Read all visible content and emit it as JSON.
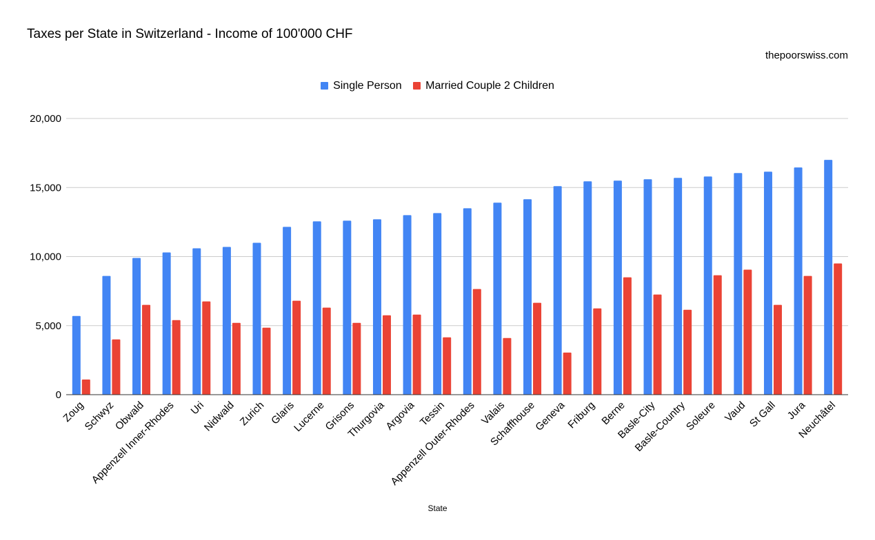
{
  "title": "Taxes per State in Switzerland - Income of 100'000 CHF",
  "source_note": "thepoorswiss.com",
  "colors": {
    "single": "#4285f4",
    "married": "#ea4335",
    "grid": "#cccccc",
    "axis": "#333333"
  },
  "chart_data": {
    "type": "bar",
    "title": "Taxes per State in Switzerland - Income of 100'000 CHF",
    "xlabel": "State",
    "ylabel": "",
    "ylim": [
      0,
      20000
    ],
    "yticks": [
      0,
      5000,
      10000,
      15000,
      20000
    ],
    "ytick_labels": [
      "0",
      "5,000",
      "10,000",
      "15,000",
      "20,000"
    ],
    "grid": true,
    "legend_position": "top",
    "categories": [
      "Zoug",
      "Schwyz",
      "Obwald",
      "Appenzell Inner-Rhodes",
      "Uri",
      "Nidwald",
      "Zurich",
      "Glaris",
      "Lucerne",
      "Grisons",
      "Thurgovia",
      "Argovia",
      "Tessin",
      "Appenzell Outer-Rhodes",
      "Valais",
      "Schaffhouse",
      "Geneva",
      "Friburg",
      "Berne",
      "Basle-City",
      "Basle-Country",
      "Soleure",
      "Vaud",
      "St Gall",
      "Jura",
      "Neuchâtel"
    ],
    "series": [
      {
        "name": "Single Person",
        "values": [
          5700,
          8600,
          9900,
          10300,
          10600,
          10700,
          11000,
          12150,
          12550,
          12600,
          12700,
          13000,
          13150,
          13500,
          13900,
          14150,
          15100,
          15450,
          15500,
          15600,
          15700,
          15800,
          16050,
          16150,
          16450,
          17000
        ]
      },
      {
        "name": "Married Couple 2 Children",
        "values": [
          1100,
          4000,
          6500,
          5400,
          6750,
          5200,
          4850,
          6800,
          6300,
          5200,
          5750,
          5800,
          4150,
          7650,
          4100,
          6650,
          3050,
          6250,
          8500,
          7250,
          6150,
          8650,
          9050,
          6500,
          8600,
          9500
        ]
      }
    ]
  }
}
